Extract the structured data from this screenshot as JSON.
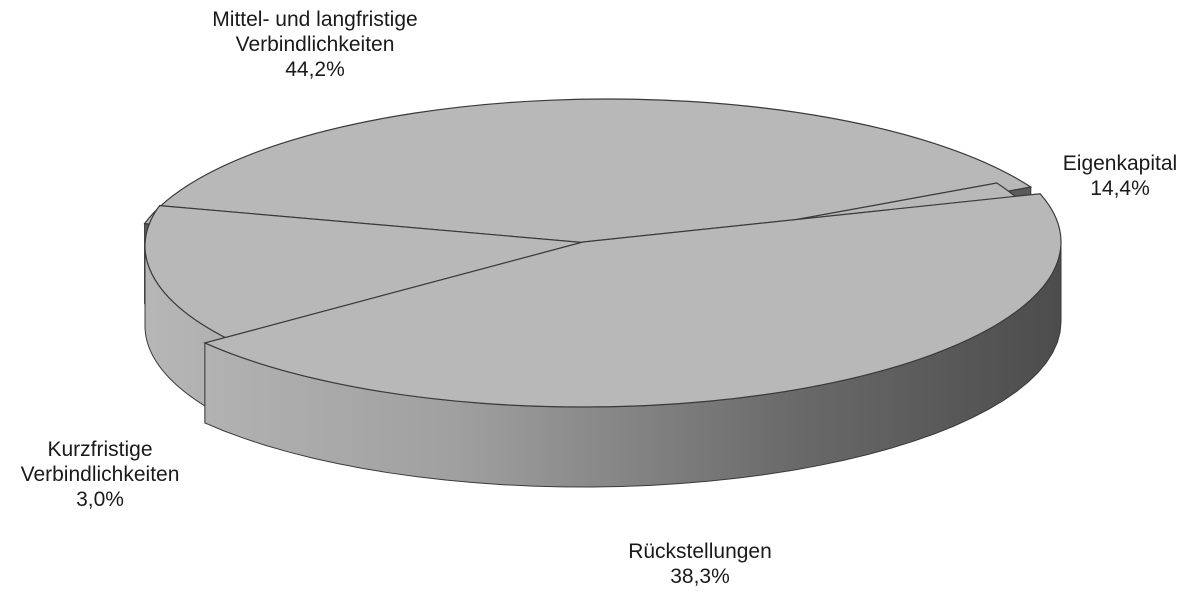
{
  "chart_data": {
    "type": "pie",
    "title": "",
    "style": "3d-exploded",
    "colors": {
      "top_face": "#b8b8b8",
      "outline": "#3a3a3a",
      "side_light": "#b4b4b4",
      "side_dark": "#4a4a4a",
      "label_text": "#1a1a1a"
    },
    "slices": [
      {
        "name_lines": [
          "Mittel- und langfristige",
          "Verbindlichkeiten"
        ],
        "label": "44,2%",
        "value": 44.2
      },
      {
        "name_lines": [
          "Eigenkapital"
        ],
        "label": "14,4%",
        "value": 14.4
      },
      {
        "name_lines": [
          "Rückstellungen"
        ],
        "label": "38,3%",
        "value": 38.3
      },
      {
        "name_lines": [
          "Kurzfristige",
          "Verbindlichkeiten"
        ],
        "label": "3,0%",
        "value": 3.0
      }
    ]
  }
}
